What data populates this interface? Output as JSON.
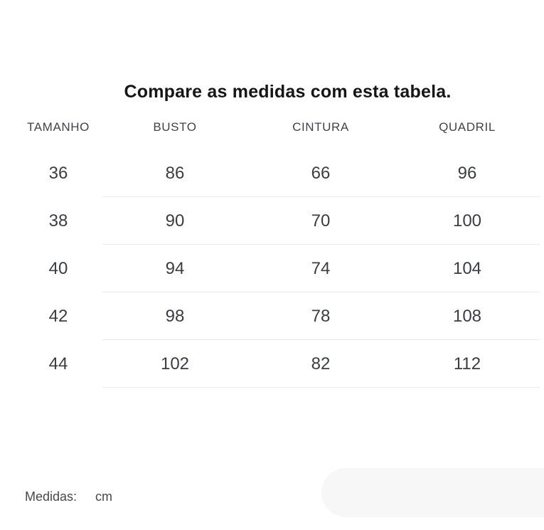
{
  "title": "Compare as medidas com esta tabela.",
  "table": {
    "columns": [
      "TAMANHO",
      "BUSTO",
      "CINTURA",
      "QUADRIL"
    ],
    "rows": [
      [
        "36",
        "86",
        "66",
        "96"
      ],
      [
        "38",
        "90",
        "70",
        "100"
      ],
      [
        "40",
        "94",
        "74",
        "104"
      ],
      [
        "42",
        "98",
        "78",
        "108"
      ],
      [
        "44",
        "102",
        "82",
        "112"
      ]
    ]
  },
  "footer": {
    "label": "Medidas:",
    "unit": "cm"
  },
  "colors": {
    "background": "#ffffff",
    "title_text": "#161616",
    "header_text": "#40434c",
    "cell_text": "#3b3d42",
    "divider": "#ececec",
    "pill": "#f7f7f7"
  }
}
